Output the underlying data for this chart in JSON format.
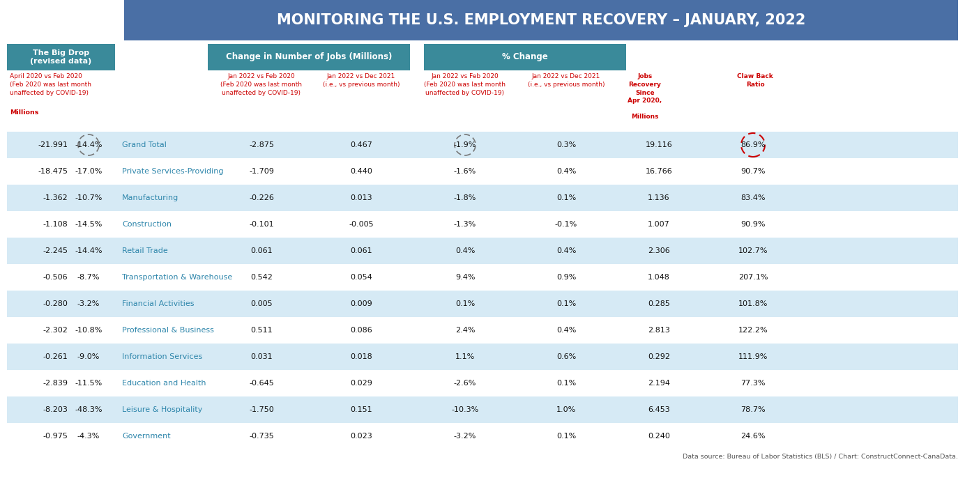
{
  "title": "MONITORING THE U.S. EMPLOYMENT RECOVERY – JANUARY, 2022",
  "title_bg": "#4a6fa5",
  "title_color": "#ffffff",
  "header1_bg": "#3a8a9a",
  "header1_color": "#ffffff",
  "col_header_color": "#cc0000",
  "data_source": "Data source: Bureau of Labor Statistics (BLS) / Chart: ConstructConnect-CanaData.",
  "left_header_bg": "#3a8a9a",
  "left_header_color": "#ffffff",
  "left_header_text": "The Big Drop\n(revised data)",
  "left_subheader": "April 2020 vs Feb 2020\n(Feb 2020 was last month\nunaffected by COVID-19)",
  "millions_label": "Millions",
  "col_group1_header": "Change in Number of Jobs (Millions)",
  "col_group2_header": "% Change",
  "col1_subheader": "Jan 2022 vs Feb 2020\n(Feb 2020 was last month\nunaffected by COVID-19)",
  "col2_subheader": "Jan 2022 vs Dec 2021\n(i.e., vs previous month)",
  "col3_subheader": "Jan 2022 vs Feb 2020\n(Feb 2020 was last month\nunaffected by COVID-19)",
  "col4_subheader": "Jan 2022 vs Dec 2021\n(i.e., vs previous month)",
  "col5_subheader": "Jobs\nRecovery\nSince\nApr 2020,",
  "col5_millions": "Millions",
  "col6_subheader": "Claw Back\nRatio",
  "row_bg_light": "#d6eaf5",
  "row_bg_white": "#ffffff",
  "category_color": "#2e86ab",
  "rows": [
    {
      "category": "Grand Total",
      "v1": "-21.991",
      "v2": "-14.4%",
      "v3": "-2.875",
      "v4": "0.467",
      "v5": "-1.9%",
      "v6": "0.3%",
      "v7": "19.116",
      "v8": "86.9%",
      "circle1": true,
      "circle2": true,
      "circle3": true
    },
    {
      "category": "Private Services-Providing",
      "v1": "-18.475",
      "v2": "-17.0%",
      "v3": "-1.709",
      "v4": "0.440",
      "v5": "-1.6%",
      "v6": "0.4%",
      "v7": "16.766",
      "v8": "90.7%",
      "circle1": false,
      "circle2": false,
      "circle3": false
    },
    {
      "category": "Manufacturing",
      "v1": "-1.362",
      "v2": "-10.7%",
      "v3": "-0.226",
      "v4": "0.013",
      "v5": "-1.8%",
      "v6": "0.1%",
      "v7": "1.136",
      "v8": "83.4%",
      "circle1": false,
      "circle2": false,
      "circle3": false
    },
    {
      "category": "Construction",
      "v1": "-1.108",
      "v2": "-14.5%",
      "v3": "-0.101",
      "v4": "-0.005",
      "v5": "-1.3%",
      "v6": "-0.1%",
      "v7": "1.007",
      "v8": "90.9%",
      "circle1": false,
      "circle2": false,
      "circle3": false
    },
    {
      "category": "Retail Trade",
      "v1": "-2.245",
      "v2": "-14.4%",
      "v3": "0.061",
      "v4": "0.061",
      "v5": "0.4%",
      "v6": "0.4%",
      "v7": "2.306",
      "v8": "102.7%",
      "circle1": false,
      "circle2": false,
      "circle3": false
    },
    {
      "category": "Transportation & Warehouse",
      "v1": "-0.506",
      "v2": "-8.7%",
      "v3": "0.542",
      "v4": "0.054",
      "v5": "9.4%",
      "v6": "0.9%",
      "v7": "1.048",
      "v8": "207.1%",
      "circle1": false,
      "circle2": false,
      "circle3": false
    },
    {
      "category": "Financial Activities",
      "v1": "-0.280",
      "v2": "-3.2%",
      "v3": "0.005",
      "v4": "0.009",
      "v5": "0.1%",
      "v6": "0.1%",
      "v7": "0.285",
      "v8": "101.8%",
      "circle1": false,
      "circle2": false,
      "circle3": false
    },
    {
      "category": "Professional & Business",
      "v1": "-2.302",
      "v2": "-10.8%",
      "v3": "0.511",
      "v4": "0.086",
      "v5": "2.4%",
      "v6": "0.4%",
      "v7": "2.813",
      "v8": "122.2%",
      "circle1": false,
      "circle2": false,
      "circle3": false
    },
    {
      "category": "Information Services",
      "v1": "-0.261",
      "v2": "-9.0%",
      "v3": "0.031",
      "v4": "0.018",
      "v5": "1.1%",
      "v6": "0.6%",
      "v7": "0.292",
      "v8": "111.9%",
      "circle1": false,
      "circle2": false,
      "circle3": false
    },
    {
      "category": "Education and Health",
      "v1": "-2.839",
      "v2": "-11.5%",
      "v3": "-0.645",
      "v4": "0.029",
      "v5": "-2.6%",
      "v6": "0.1%",
      "v7": "2.194",
      "v8": "77.3%",
      "circle1": false,
      "circle2": false,
      "circle3": false
    },
    {
      "category": "Leisure & Hospitality",
      "v1": "-8.203",
      "v2": "-48.3%",
      "v3": "-1.750",
      "v4": "0.151",
      "v5": "-10.3%",
      "v6": "1.0%",
      "v7": "6.453",
      "v8": "78.7%",
      "circle1": false,
      "circle2": false,
      "circle3": false
    },
    {
      "category": "Government",
      "v1": "-0.975",
      "v2": "-4.3%",
      "v3": "-0.735",
      "v4": "0.023",
      "v5": "-3.2%",
      "v6": "0.1%",
      "v7": "0.240",
      "v8": "24.6%",
      "circle1": false,
      "circle2": false,
      "circle3": false
    }
  ]
}
